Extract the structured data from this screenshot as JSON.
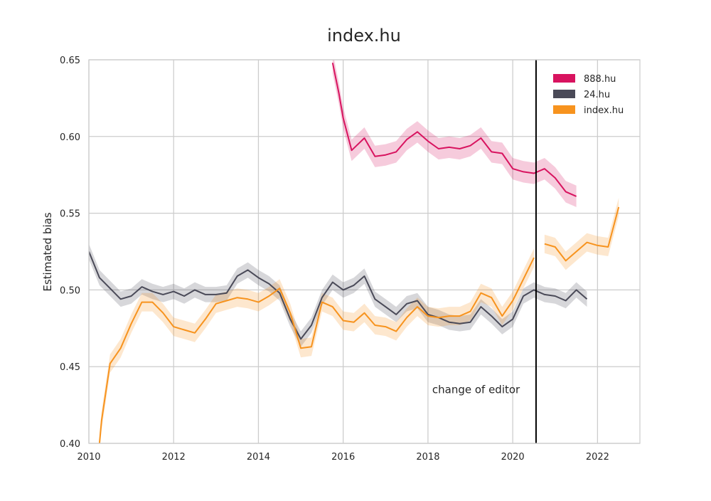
{
  "chart_data": {
    "type": "line",
    "title": "index.hu",
    "xlabel": "",
    "ylabel": "Estimated bias",
    "xlim": [
      2010,
      2023.0
    ],
    "ylim": [
      0.4,
      0.65
    ],
    "xticks": [
      2010,
      2012,
      2014,
      2016,
      2018,
      2020,
      2022
    ],
    "yticks": [
      0.4,
      0.45,
      0.5,
      0.55,
      0.6,
      0.65
    ],
    "ytick_labels": [
      "0.40",
      "0.45",
      "0.50",
      "0.55",
      "0.60",
      "0.65"
    ],
    "grid": true,
    "legend_position": "top-right",
    "annotation": {
      "text": "change of editor",
      "x": 2018.1,
      "y": 0.435
    },
    "vline": {
      "x": 2020.55,
      "color": "#000000"
    },
    "series": [
      {
        "name": "888.hu",
        "color": "#d8135f",
        "band": 0.007,
        "segments": [
          [
            [
              2015.75,
              0.648
            ],
            [
              2015.9,
              0.628
            ],
            [
              2016.0,
              0.612
            ],
            [
              2016.2,
              0.591
            ],
            [
              2016.5,
              0.599
            ],
            [
              2016.75,
              0.587
            ],
            [
              2017.0,
              0.588
            ],
            [
              2017.25,
              0.59
            ],
            [
              2017.5,
              0.598
            ],
            [
              2017.75,
              0.603
            ],
            [
              2018.0,
              0.597
            ],
            [
              2018.25,
              0.592
            ],
            [
              2018.5,
              0.593
            ],
            [
              2018.75,
              0.592
            ],
            [
              2019.0,
              0.594
            ],
            [
              2019.25,
              0.599
            ],
            [
              2019.5,
              0.59
            ],
            [
              2019.75,
              0.589
            ],
            [
              2020.0,
              0.579
            ],
            [
              2020.25,
              0.577
            ],
            [
              2020.5,
              0.576
            ],
            [
              2020.75,
              0.579
            ],
            [
              2021.0,
              0.573
            ],
            [
              2021.25,
              0.564
            ],
            [
              2021.5,
              0.561
            ]
          ]
        ]
      },
      {
        "name": "24.hu",
        "color": "#4a4a58",
        "band": 0.005,
        "segments": [
          [
            [
              2010.0,
              0.525
            ],
            [
              2010.25,
              0.508
            ],
            [
              2010.5,
              0.501
            ],
            [
              2010.75,
              0.494
            ],
            [
              2011.0,
              0.496
            ],
            [
              2011.25,
              0.502
            ],
            [
              2011.5,
              0.499
            ],
            [
              2011.75,
              0.497
            ],
            [
              2012.0,
              0.499
            ],
            [
              2012.25,
              0.496
            ],
            [
              2012.5,
              0.5
            ],
            [
              2012.75,
              0.497
            ],
            [
              2013.0,
              0.497
            ],
            [
              2013.25,
              0.498
            ],
            [
              2013.5,
              0.509
            ],
            [
              2013.75,
              0.513
            ],
            [
              2014.0,
              0.508
            ],
            [
              2014.25,
              0.504
            ],
            [
              2014.5,
              0.498
            ],
            [
              2014.75,
              0.481
            ],
            [
              2015.0,
              0.468
            ],
            [
              2015.25,
              0.477
            ],
            [
              2015.5,
              0.495
            ],
            [
              2015.75,
              0.505
            ],
            [
              2016.0,
              0.5
            ],
            [
              2016.25,
              0.503
            ],
            [
              2016.5,
              0.509
            ],
            [
              2016.75,
              0.494
            ],
            [
              2017.0,
              0.489
            ],
            [
              2017.25,
              0.484
            ],
            [
              2017.5,
              0.491
            ],
            [
              2017.75,
              0.493
            ],
            [
              2018.0,
              0.484
            ],
            [
              2018.25,
              0.482
            ],
            [
              2018.5,
              0.479
            ],
            [
              2018.75,
              0.478
            ],
            [
              2019.0,
              0.479
            ],
            [
              2019.25,
              0.489
            ],
            [
              2019.5,
              0.483
            ],
            [
              2019.75,
              0.476
            ],
            [
              2020.0,
              0.481
            ],
            [
              2020.25,
              0.496
            ],
            [
              2020.5,
              0.5
            ],
            [
              2020.75,
              0.497
            ],
            [
              2021.0,
              0.496
            ],
            [
              2021.25,
              0.493
            ],
            [
              2021.5,
              0.5
            ],
            [
              2021.75,
              0.494
            ]
          ]
        ]
      },
      {
        "name": "index.hu",
        "color": "#f7931e",
        "band": 0.006,
        "segments": [
          [
            [
              2010.25,
              0.4
            ],
            [
              2010.3,
              0.415
            ],
            [
              2010.5,
              0.452
            ],
            [
              2010.75,
              0.462
            ],
            [
              2011.0,
              0.478
            ],
            [
              2011.25,
              0.492
            ],
            [
              2011.5,
              0.492
            ],
            [
              2011.75,
              0.485
            ],
            [
              2012.0,
              0.476
            ],
            [
              2012.25,
              0.474
            ],
            [
              2012.5,
              0.472
            ],
            [
              2012.75,
              0.481
            ],
            [
              2013.0,
              0.491
            ],
            [
              2013.25,
              0.493
            ],
            [
              2013.5,
              0.495
            ],
            [
              2013.75,
              0.494
            ],
            [
              2014.0,
              0.492
            ],
            [
              2014.25,
              0.496
            ],
            [
              2014.5,
              0.501
            ],
            [
              2014.75,
              0.485
            ],
            [
              2015.0,
              0.462
            ],
            [
              2015.25,
              0.463
            ],
            [
              2015.5,
              0.492
            ],
            [
              2015.75,
              0.489
            ],
            [
              2016.0,
              0.48
            ],
            [
              2016.25,
              0.479
            ],
            [
              2016.5,
              0.485
            ],
            [
              2016.75,
              0.477
            ],
            [
              2017.0,
              0.476
            ],
            [
              2017.25,
              0.473
            ],
            [
              2017.5,
              0.482
            ],
            [
              2017.75,
              0.489
            ],
            [
              2018.0,
              0.483
            ],
            [
              2018.25,
              0.482
            ],
            [
              2018.5,
              0.483
            ],
            [
              2018.75,
              0.483
            ],
            [
              2019.0,
              0.486
            ],
            [
              2019.25,
              0.498
            ],
            [
              2019.5,
              0.495
            ],
            [
              2019.75,
              0.483
            ],
            [
              2020.0,
              0.493
            ],
            [
              2020.25,
              0.507
            ],
            [
              2020.5,
              0.521
            ]
          ],
          [
            [
              2020.75,
              0.53
            ],
            [
              2021.0,
              0.528
            ],
            [
              2021.25,
              0.519
            ],
            [
              2021.5,
              0.525
            ],
            [
              2021.75,
              0.531
            ],
            [
              2022.0,
              0.529
            ],
            [
              2022.25,
              0.528
            ],
            [
              2022.5,
              0.554
            ]
          ]
        ]
      }
    ]
  }
}
